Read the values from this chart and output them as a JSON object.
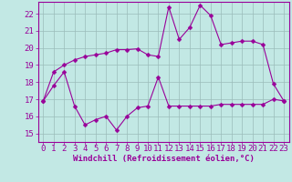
{
  "xlabel": "Windchill (Refroidissement éolien,°C)",
  "bg_color": "#c2e8e4",
  "line_color": "#990099",
  "grid_color": "#9bbcba",
  "xlim": [
    -0.5,
    23.5
  ],
  "ylim": [
    14.5,
    22.7
  ],
  "yticks": [
    15,
    16,
    17,
    18,
    19,
    20,
    21,
    22
  ],
  "xticks": [
    0,
    1,
    2,
    3,
    4,
    5,
    6,
    7,
    8,
    9,
    10,
    11,
    12,
    13,
    14,
    15,
    16,
    17,
    18,
    19,
    20,
    21,
    22,
    23
  ],
  "series1_x": [
    0,
    1,
    2,
    3,
    4,
    5,
    6,
    7,
    8,
    9,
    10,
    11,
    12,
    13,
    14,
    15,
    16,
    17,
    18,
    19,
    20,
    21,
    22,
    23
  ],
  "series1_y": [
    16.9,
    17.8,
    18.6,
    16.6,
    15.5,
    15.8,
    16.0,
    15.2,
    16.0,
    16.5,
    16.6,
    18.3,
    16.6,
    16.6,
    16.6,
    16.6,
    16.6,
    16.7,
    16.7,
    16.7,
    16.7,
    16.7,
    17.0,
    16.9
  ],
  "series2_x": [
    0,
    1,
    2,
    3,
    4,
    5,
    6,
    7,
    8,
    9,
    10,
    11,
    12,
    13,
    14,
    15,
    16,
    17,
    18,
    19,
    20,
    21,
    22,
    23
  ],
  "series2_y": [
    16.9,
    18.6,
    19.0,
    19.3,
    19.5,
    19.6,
    19.7,
    19.9,
    19.9,
    19.95,
    19.6,
    19.5,
    22.4,
    20.5,
    21.2,
    22.5,
    21.9,
    20.2,
    20.3,
    20.4,
    20.4,
    20.2,
    17.9,
    16.9
  ],
  "tick_fontsize": 6.5,
  "xlabel_fontsize": 6.5,
  "marker_size": 2.5
}
